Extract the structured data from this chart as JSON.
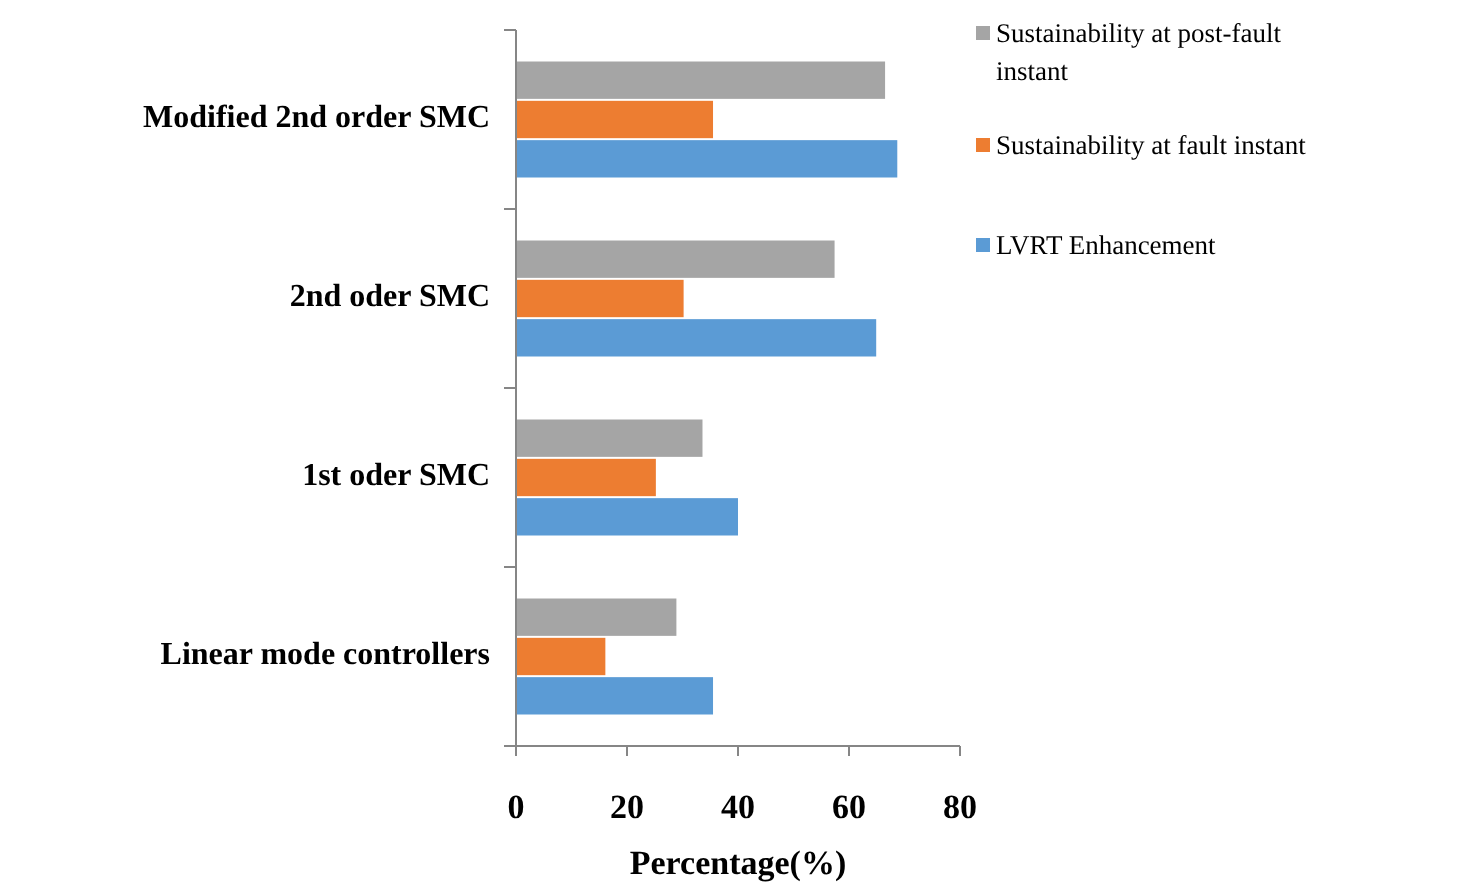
{
  "chart_data": {
    "type": "bar",
    "orientation": "horizontal",
    "categories": [
      "Modified 2nd order SMC",
      "2nd oder SMC",
      "1st oder SMC",
      "Linear mode controllers"
    ],
    "series": [
      {
        "name": "Sustainability at post-fault instant",
        "color": "#a5a5a5",
        "values": [
          66.5,
          57.4,
          33.6,
          28.9
        ]
      },
      {
        "name": "Sustainability at fault instant",
        "color": "#ed7d31",
        "values": [
          35.5,
          30.2,
          25.2,
          16.1
        ]
      },
      {
        "name": "LVRT Enhancement",
        "color": "#5b9bd5",
        "values": [
          68.7,
          64.9,
          40.0,
          35.5
        ]
      }
    ],
    "xlabel": "Percentage(%)",
    "xlim": [
      0,
      80
    ],
    "xticks": [
      0,
      20,
      40,
      60,
      80
    ],
    "grid": false,
    "legend": "right"
  }
}
